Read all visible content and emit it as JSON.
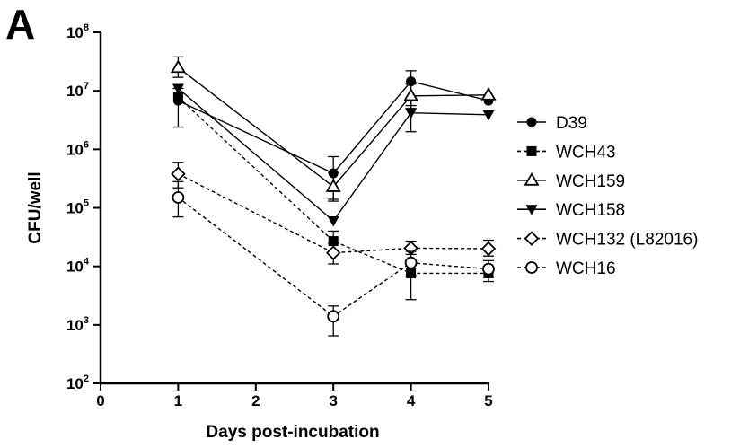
{
  "panel_label": "A",
  "chart_data": {
    "type": "line",
    "title": "",
    "xlabel": "Days post-incubation",
    "ylabel": "CFU/well",
    "xlim": [
      0,
      5
    ],
    "ylim": [
      100,
      100000000
    ],
    "yscale": "log",
    "x_ticks": [
      "0",
      "1",
      "2",
      "3",
      "4",
      "5"
    ],
    "y_ticks": [
      {
        "base": "10",
        "exp": "2"
      },
      {
        "base": "10",
        "exp": "3"
      },
      {
        "base": "10",
        "exp": "4"
      },
      {
        "base": "10",
        "exp": "5"
      },
      {
        "base": "10",
        "exp": "6"
      },
      {
        "base": "10",
        "exp": "7"
      },
      {
        "base": "10",
        "exp": "8"
      }
    ],
    "grid": false,
    "legend_position": "right",
    "series": [
      {
        "name": "D39",
        "marker": "circle-filled",
        "line": "solid",
        "x": [
          1,
          3,
          4,
          5
        ],
        "y": [
          6800000,
          390000,
          14500000,
          6800000
        ],
        "err_low": [
          2400000,
          130000,
          5600000,
          null
        ],
        "err_high": [
          11000000,
          750000,
          22000000,
          null
        ]
      },
      {
        "name": "WCH43",
        "marker": "square-filled",
        "line": "dashed",
        "x": [
          1,
          3,
          4,
          5
        ],
        "y": [
          7800000,
          27000,
          7600,
          7600
        ],
        "err_low": [
          null,
          17000,
          2700,
          5500
        ],
        "err_high": [
          null,
          40000,
          13000,
          10000
        ]
      },
      {
        "name": "WCH159",
        "marker": "triangle-open",
        "line": "solid",
        "x": [
          1,
          3,
          4,
          5
        ],
        "y": [
          25000000,
          230000,
          8200000,
          8500000
        ],
        "err_low": [
          17000000,
          140000,
          5000000,
          null
        ],
        "err_high": [
          38000000,
          400000,
          13000000,
          null
        ]
      },
      {
        "name": "WCH158",
        "marker": "triangle-down-filled",
        "line": "solid",
        "x": [
          1,
          3,
          4,
          5
        ],
        "y": [
          11000000,
          60000,
          4200000,
          3900000
        ],
        "err_low": [
          null,
          null,
          2000000,
          null
        ],
        "err_high": [
          null,
          null,
          7000000,
          null
        ]
      },
      {
        "name": "WCH132 (L82016)",
        "marker": "diamond-open",
        "line": "dashed",
        "x": [
          1,
          3,
          4,
          5
        ],
        "y": [
          380000,
          17000,
          20500,
          20000
        ],
        "err_low": [
          220000,
          11000,
          16000,
          15000
        ],
        "err_high": [
          600000,
          25000,
          27000,
          28000
        ]
      },
      {
        "name": "WCH16",
        "marker": "circle-open",
        "line": "dashed",
        "x": [
          1,
          3,
          4,
          5
        ],
        "y": [
          150000,
          1400,
          11500,
          9000
        ],
        "err_low": [
          70000,
          650,
          7000,
          6500
        ],
        "err_high": [
          280000,
          2100,
          18000,
          12500
        ]
      }
    ]
  }
}
